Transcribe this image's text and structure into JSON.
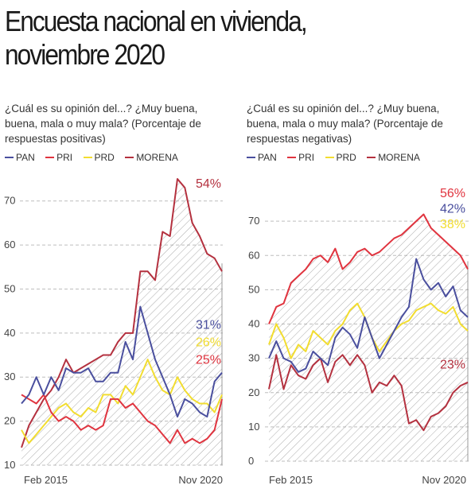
{
  "title_lines": [
    "Encuesta nacional en vivienda,",
    "noviembre 2020"
  ],
  "colors": {
    "PAN": "#4a4f9e",
    "PRI": "#e0343f",
    "PRD": "#f2dd30",
    "MORENA": "#b4313f",
    "grid": "#bdbdbd",
    "hatch": "#9c9c9c"
  },
  "legend": [
    {
      "key": "PAN",
      "label": "PAN"
    },
    {
      "key": "PRI",
      "label": "PRI"
    },
    {
      "key": "PRD",
      "label": "PRD"
    },
    {
      "key": "MORENA",
      "label": "MORENA"
    }
  ],
  "chart_data": [
    {
      "type": "line",
      "title": "¿Cuál es su opinión del...? ¿Muy buena, buena, mala o muy mala? (Porcentaje de respuestas positivas)",
      "x_labels": [
        "Feb 2015",
        "Nov 2020"
      ],
      "yticks": [
        10,
        20,
        30,
        40,
        50,
        60,
        70
      ],
      "ylim": [
        10,
        75
      ],
      "grid": true,
      "shaded_series": "MORENA",
      "end_labels": [
        {
          "series": "MORENA",
          "text": "54%",
          "y": 73
        },
        {
          "series": "PAN",
          "text": "31%",
          "y": 41
        },
        {
          "series": "PRD",
          "text": "26%",
          "y": 37
        },
        {
          "series": "PRI",
          "text": "25%",
          "y": 33
        }
      ],
      "series": [
        {
          "name": "PAN",
          "key": "PAN",
          "values": [
            24,
            26,
            30,
            26,
            30,
            27,
            32,
            31,
            31,
            32,
            29,
            29,
            31,
            31,
            38,
            34,
            46,
            40,
            34,
            30,
            26,
            21,
            25,
            24,
            22,
            21,
            29,
            31
          ]
        },
        {
          "name": "PRI",
          "key": "PRI",
          "values": [
            26,
            25,
            24,
            26,
            22,
            20,
            21,
            20,
            18,
            19,
            18,
            19,
            25,
            25,
            23,
            24,
            22,
            20,
            19,
            17,
            15,
            18,
            15,
            16,
            15,
            16,
            18,
            25
          ]
        },
        {
          "name": "PRD",
          "key": "PRD",
          "values": [
            18,
            15,
            17,
            19,
            21,
            23,
            24,
            22,
            21,
            23,
            22,
            26,
            26,
            24,
            28,
            26,
            30,
            34,
            30,
            27,
            26,
            30,
            27,
            25,
            24,
            24,
            22,
            26
          ]
        },
        {
          "name": "MORENA",
          "key": "MORENA",
          "values": [
            14,
            19,
            22,
            25,
            27,
            30,
            34,
            31,
            32,
            33,
            34,
            35,
            35,
            38,
            40,
            40,
            54,
            54,
            52,
            63,
            62,
            75,
            73,
            65,
            62,
            58,
            57,
            54
          ]
        }
      ]
    },
    {
      "type": "line",
      "title": "¿Cuál es su opinión del...? ¿Muy buena, buena, mala o muy mala? (Porcentaje de respuestas negativas)",
      "x_labels": [
        "Feb 2015",
        "Nov 2020"
      ],
      "yticks": [
        0,
        10,
        20,
        30,
        40,
        50,
        60,
        70
      ],
      "ylim": [
        0,
        80
      ],
      "grid": true,
      "shaded_series": "PRI",
      "end_labels": [
        {
          "series": "PRI",
          "text": "56%",
          "y": 77
        },
        {
          "series": "PAN",
          "text": "42%",
          "y": 72.5
        },
        {
          "series": "PRD",
          "text": "38%",
          "y": 68
        },
        {
          "series": "MORENA",
          "text": "23%",
          "y": 27
        }
      ],
      "series": [
        {
          "name": "PAN",
          "key": "PAN",
          "values": [
            30,
            35,
            30,
            29,
            26,
            27,
            32,
            30,
            28,
            36,
            39,
            37,
            33,
            42,
            36,
            30,
            34,
            38,
            42,
            45,
            59,
            53,
            50,
            52,
            48,
            51,
            44,
            42
          ]
        },
        {
          "name": "PRI",
          "key": "PRI",
          "values": [
            40,
            45,
            46,
            52,
            54,
            56,
            59,
            60,
            58,
            62,
            56,
            58,
            61,
            62,
            60,
            61,
            63,
            65,
            66,
            68,
            70,
            72,
            68,
            66,
            64,
            62,
            60,
            56
          ]
        },
        {
          "name": "PRD",
          "key": "PRD",
          "values": [
            34,
            40,
            36,
            30,
            34,
            32,
            38,
            36,
            34,
            38,
            40,
            44,
            46,
            42,
            36,
            32,
            35,
            38,
            40,
            41,
            44,
            45,
            46,
            44,
            43,
            45,
            40,
            38
          ]
        },
        {
          "name": "MORENA",
          "key": "MORENA",
          "values": [
            21,
            31,
            21,
            28,
            25,
            24,
            28,
            30,
            23,
            29,
            31,
            28,
            31,
            28,
            20,
            23,
            22,
            25,
            22,
            11,
            12,
            9,
            13,
            14,
            16,
            20,
            22,
            23
          ]
        }
      ]
    }
  ]
}
